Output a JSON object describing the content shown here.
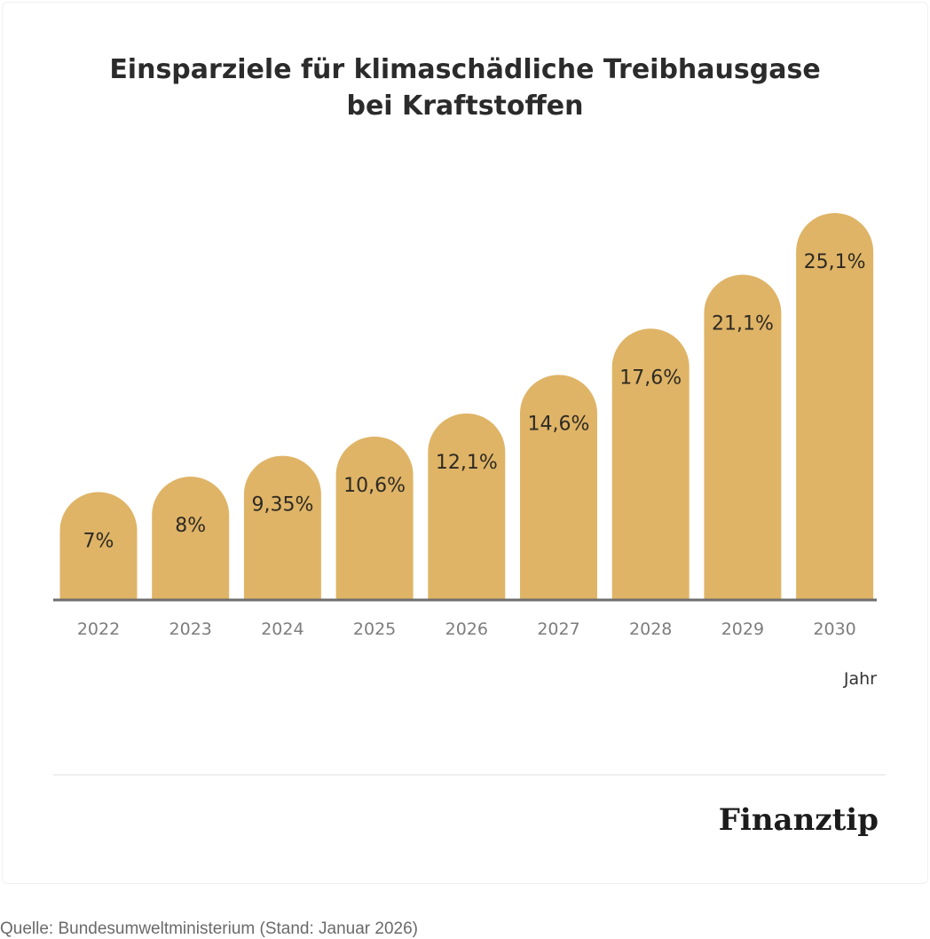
{
  "chart_data": {
    "type": "bar",
    "title": [
      "Einsparziele für klimaschädliche Treibhausgase",
      "bei Kraftstoffen"
    ],
    "categories": [
      "2022",
      "2023",
      "2024",
      "2025",
      "2026",
      "2027",
      "2028",
      "2029",
      "2030"
    ],
    "values": [
      7,
      8,
      9.35,
      10.6,
      12.1,
      14.6,
      17.6,
      21.1,
      25.1
    ],
    "value_labels": [
      "7%",
      "8%",
      "9,35%",
      "10,6%",
      "12,1%",
      "14,6%",
      "17,6%",
      "21,1%",
      "25,1%"
    ],
    "xlabel": "Jahr",
    "ylabel": "",
    "ylim": [
      0,
      25.1
    ],
    "grid": false,
    "legend": "none"
  },
  "brand": "Finanztip",
  "source": "Quelle: Bundesumweltministerium (Stand: Januar 2026)",
  "colors": {
    "bar": "#dfb467",
    "baseline": "#6e6e6e",
    "separator": "#eeeeee"
  }
}
